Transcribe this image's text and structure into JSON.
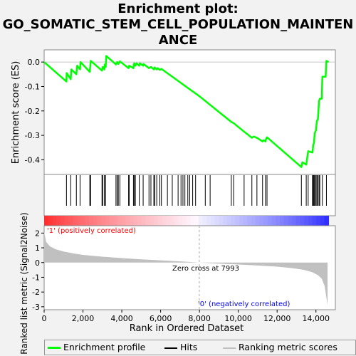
{
  "title_lines": [
    "Enrichment plot:",
    "GO_SOMATIC_STEM_CELL_POPULATION_MAINTEN",
    "ANCE"
  ],
  "colors": {
    "es_line": "#00ff00",
    "hits": "#000000",
    "metric_fill": "#c0c0c0",
    "zero_line": "#c8c8c8",
    "pos": "#ff0000",
    "neg": "#0000ff"
  },
  "chart_data": {
    "type": "line",
    "title": "Enrichment plot: GO_SOMATIC_STEM_CELL_POPULATION_MAINTENANCE",
    "xlabel": "Rank in Ordered Dataset",
    "xlim": [
      0,
      15000
    ],
    "x_ticks": [
      0,
      2000,
      4000,
      6000,
      8000,
      10000,
      12000,
      14000
    ],
    "x_tick_labels": [
      "0",
      "2,000",
      "4,000",
      "6,000",
      "8,000",
      "10,000",
      "12,000",
      "14,000"
    ],
    "es_panel": {
      "ylabel": "Enrichment score (ES)",
      "ylim": [
        -0.46,
        0.05
      ],
      "y_ticks": [
        0.0,
        -0.1,
        -0.2,
        -0.3,
        -0.4
      ],
      "y_tick_labels": [
        "0.0",
        "-0.1",
        "-0.2",
        "-0.3",
        "-0.4"
      ],
      "points": [
        [
          0,
          0.0
        ],
        [
          1150,
          -0.08
        ],
        [
          1160,
          -0.045
        ],
        [
          1370,
          -0.07
        ],
        [
          1400,
          -0.03
        ],
        [
          1660,
          -0.05
        ],
        [
          1700,
          -0.015
        ],
        [
          1850,
          -0.03
        ],
        [
          1870,
          0.0
        ],
        [
          2350,
          -0.04
        ],
        [
          2400,
          0.005
        ],
        [
          2980,
          -0.035
        ],
        [
          3020,
          -0.02
        ],
        [
          3100,
          -0.03
        ],
        [
          3120,
          -0.01
        ],
        [
          3170,
          -0.02
        ],
        [
          3200,
          0.025
        ],
        [
          3700,
          -0.01
        ],
        [
          3760,
          0.0
        ],
        [
          3820,
          -0.008
        ],
        [
          3900,
          0.003
        ],
        [
          4350,
          -0.025
        ],
        [
          4380,
          -0.015
        ],
        [
          4600,
          -0.025
        ],
        [
          4620,
          -0.01
        ],
        [
          4640,
          -0.005
        ],
        [
          4700,
          -0.015
        ],
        [
          4760,
          -0.005
        ],
        [
          4900,
          -0.015
        ],
        [
          4930,
          -0.005
        ],
        [
          5100,
          -0.015
        ],
        [
          5120,
          -0.008
        ],
        [
          5400,
          -0.025
        ],
        [
          5500,
          -0.02
        ],
        [
          5650,
          -0.03
        ],
        [
          5700,
          -0.022
        ],
        [
          5800,
          -0.03
        ],
        [
          5850,
          -0.025
        ],
        [
          5960,
          -0.032
        ],
        [
          6040,
          -0.028
        ],
        [
          8000,
          -0.14
        ],
        [
          9640,
          -0.245
        ],
        [
          9760,
          -0.25
        ],
        [
          10300,
          -0.285
        ],
        [
          10700,
          -0.31
        ],
        [
          10800,
          -0.305
        ],
        [
          10960,
          -0.31
        ],
        [
          11250,
          -0.325
        ],
        [
          11300,
          -0.32
        ],
        [
          11400,
          -0.325
        ],
        [
          11430,
          -0.315
        ],
        [
          11480,
          -0.308
        ],
        [
          13250,
          -0.43
        ],
        [
          13300,
          -0.41
        ],
        [
          13500,
          -0.42
        ],
        [
          13600,
          -0.365
        ],
        [
          13820,
          -0.37
        ],
        [
          13860,
          -0.34
        ],
        [
          13900,
          -0.33
        ],
        [
          13940,
          -0.29
        ],
        [
          14000,
          -0.28
        ],
        [
          14050,
          -0.24
        ],
        [
          14100,
          -0.235
        ],
        [
          14160,
          -0.16
        ],
        [
          14200,
          -0.15
        ],
        [
          14300,
          -0.15
        ],
        [
          14330,
          -0.06
        ],
        [
          14500,
          -0.06
        ],
        [
          14540,
          0.005
        ],
        [
          14650,
          0.0
        ]
      ],
      "legend": [
        "Enrichment profile",
        "Hits",
        "Ranking metric scores"
      ]
    },
    "hits_ranks": [
      1150,
      1370,
      1660,
      1850,
      2350,
      2400,
      2980,
      3020,
      3100,
      3170,
      3700,
      3760,
      3820,
      3900,
      4350,
      4380,
      4600,
      4640,
      4700,
      4900,
      5100,
      5400,
      5500,
      5650,
      5700,
      5800,
      5960,
      6040,
      6350,
      6600,
      6900,
      7050,
      7150,
      7250,
      7400,
      7500,
      7650,
      7800,
      8300,
      8550,
      9640,
      9760,
      10300,
      10700,
      10960,
      11250,
      11400,
      11480,
      13250,
      13500,
      13600,
      13820,
      13860,
      13900,
      13940,
      14000,
      14050,
      14100,
      14160,
      14200,
      14330,
      14540
    ],
    "metric_panel": {
      "ylabel": "Ranked list metric (Signal2Noise)",
      "ylim": [
        -3.2,
        2.5
      ],
      "y_ticks": [
        2,
        1,
        0,
        -1,
        -2,
        -3
      ],
      "y_tick_labels": [
        "2",
        "1",
        "0",
        "-1",
        "-2",
        "-3"
      ],
      "curve": [
        [
          0,
          2.1
        ],
        [
          100,
          1.4
        ],
        [
          300,
          1.1
        ],
        [
          600,
          0.9
        ],
        [
          1000,
          0.75
        ],
        [
          1500,
          0.62
        ],
        [
          2000,
          0.52
        ],
        [
          3000,
          0.4
        ],
        [
          4000,
          0.3
        ],
        [
          5000,
          0.22
        ],
        [
          6000,
          0.15
        ],
        [
          7000,
          0.08
        ],
        [
          7993,
          0.0
        ],
        [
          9000,
          -0.07
        ],
        [
          10000,
          -0.13
        ],
        [
          11000,
          -0.2
        ],
        [
          12000,
          -0.28
        ],
        [
          12800,
          -0.38
        ],
        [
          13400,
          -0.5
        ],
        [
          13800,
          -0.65
        ],
        [
          14100,
          -0.85
        ],
        [
          14300,
          -1.1
        ],
        [
          14450,
          -1.6
        ],
        [
          14600,
          -2.9
        ]
      ],
      "zero_cross_label": "Zero cross at 7993",
      "zero_cross_rank": 7993,
      "pos_label": "'1' (positively correlated)",
      "neg_label": "'0' (negatively correlated)"
    }
  }
}
